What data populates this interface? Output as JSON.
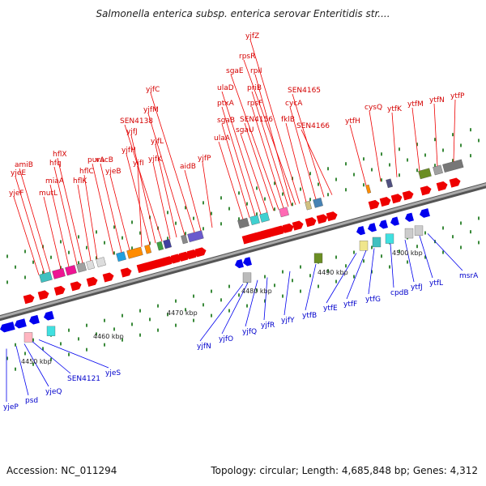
{
  "title": "Salmonella enterica subsp. enterica serovar Enteritidis str....",
  "accession": "Accession: NC_011294",
  "stats": "Topology: circular; Length: 4,685,848 bp; Genes: 4,312",
  "colors": {
    "forward": "#ee0000",
    "reverse": "#0000ee",
    "backbone": "#888888",
    "label_fwd": "#d40000",
    "label_rev": "#0000cc"
  },
  "ticks": [
    "4450 kbp",
    "4460 kbp",
    "4470 kbp",
    "4480 kbp",
    "4490 kbp",
    "4500 kbp"
  ],
  "upper_labels": [
    "yjeF",
    "yjeE",
    "amiB",
    "mutL",
    "miaA",
    "hfq",
    "hflX",
    "hflK",
    "hflC",
    "purA",
    "vacB",
    "yjeB",
    "yjfI",
    "yjfH",
    "yjfJ",
    "SEN4138",
    "yjfK",
    "yjfL",
    "yjfM",
    "yjfC",
    "aidB",
    "yjfP",
    "ulaA",
    "sgaB",
    "ptxA",
    "ulaD",
    "sgaU",
    "SEN4156",
    "sgaE",
    "rpsF",
    "priB",
    "rplI",
    "rpsR",
    "yjfZ",
    "fklB",
    "cycA",
    "SEN4165",
    "SEN4166",
    "ytfH",
    "cysQ",
    "ytfK",
    "ytfM",
    "ytfN",
    "ytfP"
  ],
  "lower_labels": [
    "yjeP",
    "psd",
    "yjeQ",
    "SEN4121",
    "yjeS",
    "yjfN",
    "yjfO",
    "yjfQ",
    "yjfR",
    "yjfY",
    "ytfB",
    "ytfE",
    "ytfF",
    "ytfG",
    "cpdB",
    "ytfJ",
    "ytfL",
    "msrA"
  ]
}
